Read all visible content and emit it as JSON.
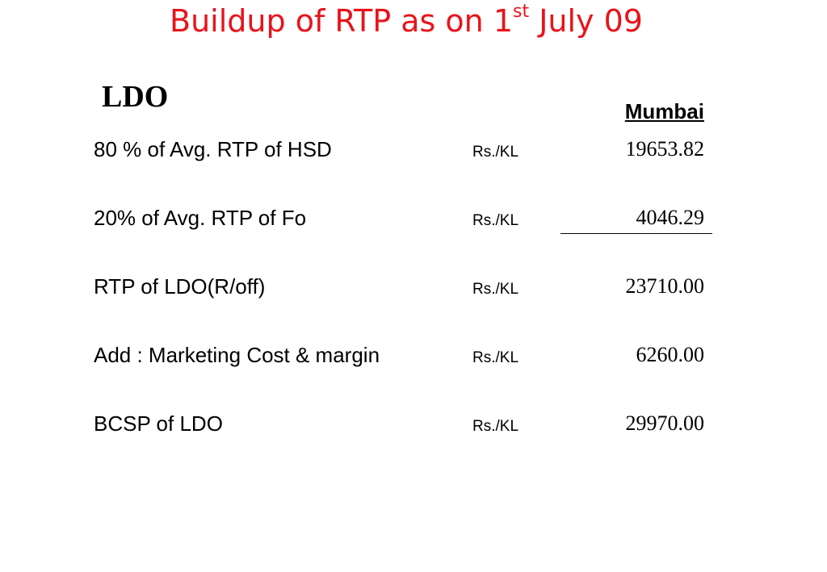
{
  "slide": {
    "title": "Buildup of RTP as on 1",
    "title_sup": "st",
    "title_end": " July 09",
    "subtitle": "LDO",
    "column_header": "Mumbai",
    "title_color": "#e8141b"
  },
  "rows": [
    {
      "label": "80 % of Avg. RTP of HSD",
      "unit": "Rs./KL",
      "value": "19653.82"
    },
    {
      "label": "20% of Avg. RTP of Fo",
      "unit": "Rs./KL",
      "value": "4046.29"
    },
    {
      "label": "RTP of LDO(R/off)",
      "unit": "Rs./KL",
      "value": "23710.00"
    },
    {
      "label": "Add : Marketing Cost & margin",
      "unit": "Rs./KL",
      "value": "6260.00"
    },
    {
      "label": "BCSP of LDO",
      "unit": "Rs./KL",
      "value": "29970.00"
    }
  ]
}
